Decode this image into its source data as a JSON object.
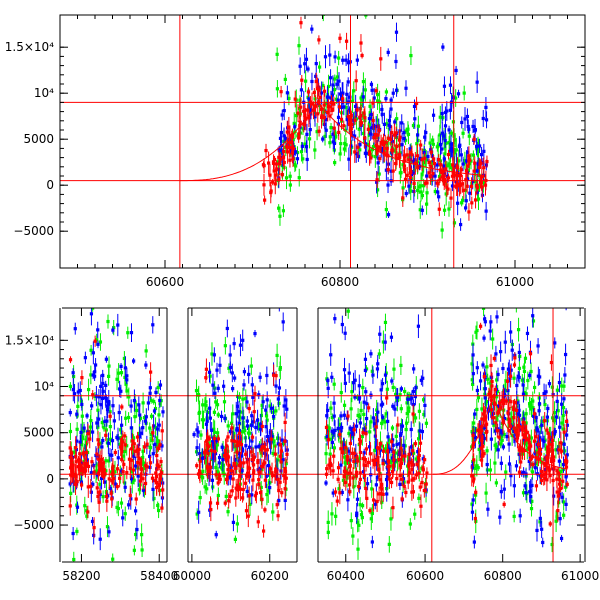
{
  "chart_data": [
    {
      "type": "scatter",
      "title": "",
      "xlabel": "",
      "ylabel": "",
      "xlim": [
        60480,
        61080
      ],
      "ylim": [
        -9000,
        18500
      ],
      "x_ticks": [
        {
          "v": 60600,
          "label": "60600"
        },
        {
          "v": 60800,
          "label": "60800"
        },
        {
          "v": 61000,
          "label": "61000"
        }
      ],
      "y_ticks": [
        {
          "v": -5000,
          "label": "−5000"
        },
        {
          "v": 0,
          "label": "0"
        },
        {
          "v": 5000,
          "label": "5000"
        },
        {
          "v": 10000,
          "label": "10⁴"
        },
        {
          "v": 15000,
          "label": "1.5×10⁴"
        }
      ],
      "reference_lines": {
        "vertical": [
          60617,
          60812,
          60930
        ],
        "horizontal": [
          500,
          9000
        ]
      },
      "model_curve": {
        "t0": 60617,
        "peak_x": 60775,
        "peak_y": 9000,
        "end_x": 60965
      },
      "series": [
        {
          "name": "green",
          "color": "#00ee00",
          "x_range": [
            60728,
            60968
          ],
          "peak_x": 60775,
          "peak_y": 8500,
          "baseline": 1500
        },
        {
          "name": "blue",
          "color": "#0000ff",
          "x_range": [
            60730,
            60968
          ],
          "peak_x": 60775,
          "peak_y": 9000,
          "baseline": 3000
        },
        {
          "name": "red",
          "color": "#ff0000",
          "x_range": [
            60712,
            60968
          ],
          "peak_x": 60775,
          "peak_y": 9000,
          "baseline": 1000
        }
      ]
    },
    {
      "type": "scatter",
      "title": "",
      "xlabel": "",
      "ylabel": "",
      "broken_axis": true,
      "ylim": [
        -9000,
        18500
      ],
      "y_ticks": [
        {
          "v": -5000,
          "label": "−5000"
        },
        {
          "v": 0,
          "label": "0"
        },
        {
          "v": 5000,
          "label": "5000"
        },
        {
          "v": 10000,
          "label": "10⁴"
        },
        {
          "v": 15000,
          "label": "1.5×10⁴"
        }
      ],
      "reference_lines": {
        "horizontal": [
          500,
          9000
        ]
      },
      "segments": [
        {
          "xlim": [
            58150,
            58420
          ],
          "data_range": [
            58170,
            58410
          ],
          "x_ticks": [
            {
              "v": 58200,
              "label": "58200"
            },
            {
              "v": 58400,
              "label": "58400"
            }
          ],
          "peak_x": null,
          "vlines": []
        },
        {
          "xlim": [
            59990,
            60270
          ],
          "data_range": [
            60005,
            60245
          ],
          "x_ticks": [
            {
              "v": 60000,
              "label": "60000"
            },
            {
              "v": 60200,
              "label": "60200"
            }
          ],
          "peak_x": null,
          "vlines": []
        },
        {
          "xlim": [
            60330,
            60620
          ],
          "data_range": [
            60350,
            60605
          ],
          "x_ticks": [
            {
              "v": 60400,
              "label": "60400"
            },
            {
              "v": 60600,
              "label": "60600"
            }
          ],
          "peak_x": null,
          "vlines": [
            60617
          ]
        },
        {
          "xlim": [
            60620,
            61010
          ],
          "data_range": [
            60720,
            60968
          ],
          "x_ticks": [
            {
              "v": 60800,
              "label": "60800"
            },
            {
              "v": 61000,
              "label": "61000"
            }
          ],
          "peak_x": 60775,
          "vlines": [
            60930
          ]
        }
      ],
      "series": [
        {
          "name": "green",
          "color": "#00ee00"
        },
        {
          "name": "blue",
          "color": "#0000ff"
        },
        {
          "name": "red",
          "color": "#ff0000"
        }
      ]
    }
  ]
}
